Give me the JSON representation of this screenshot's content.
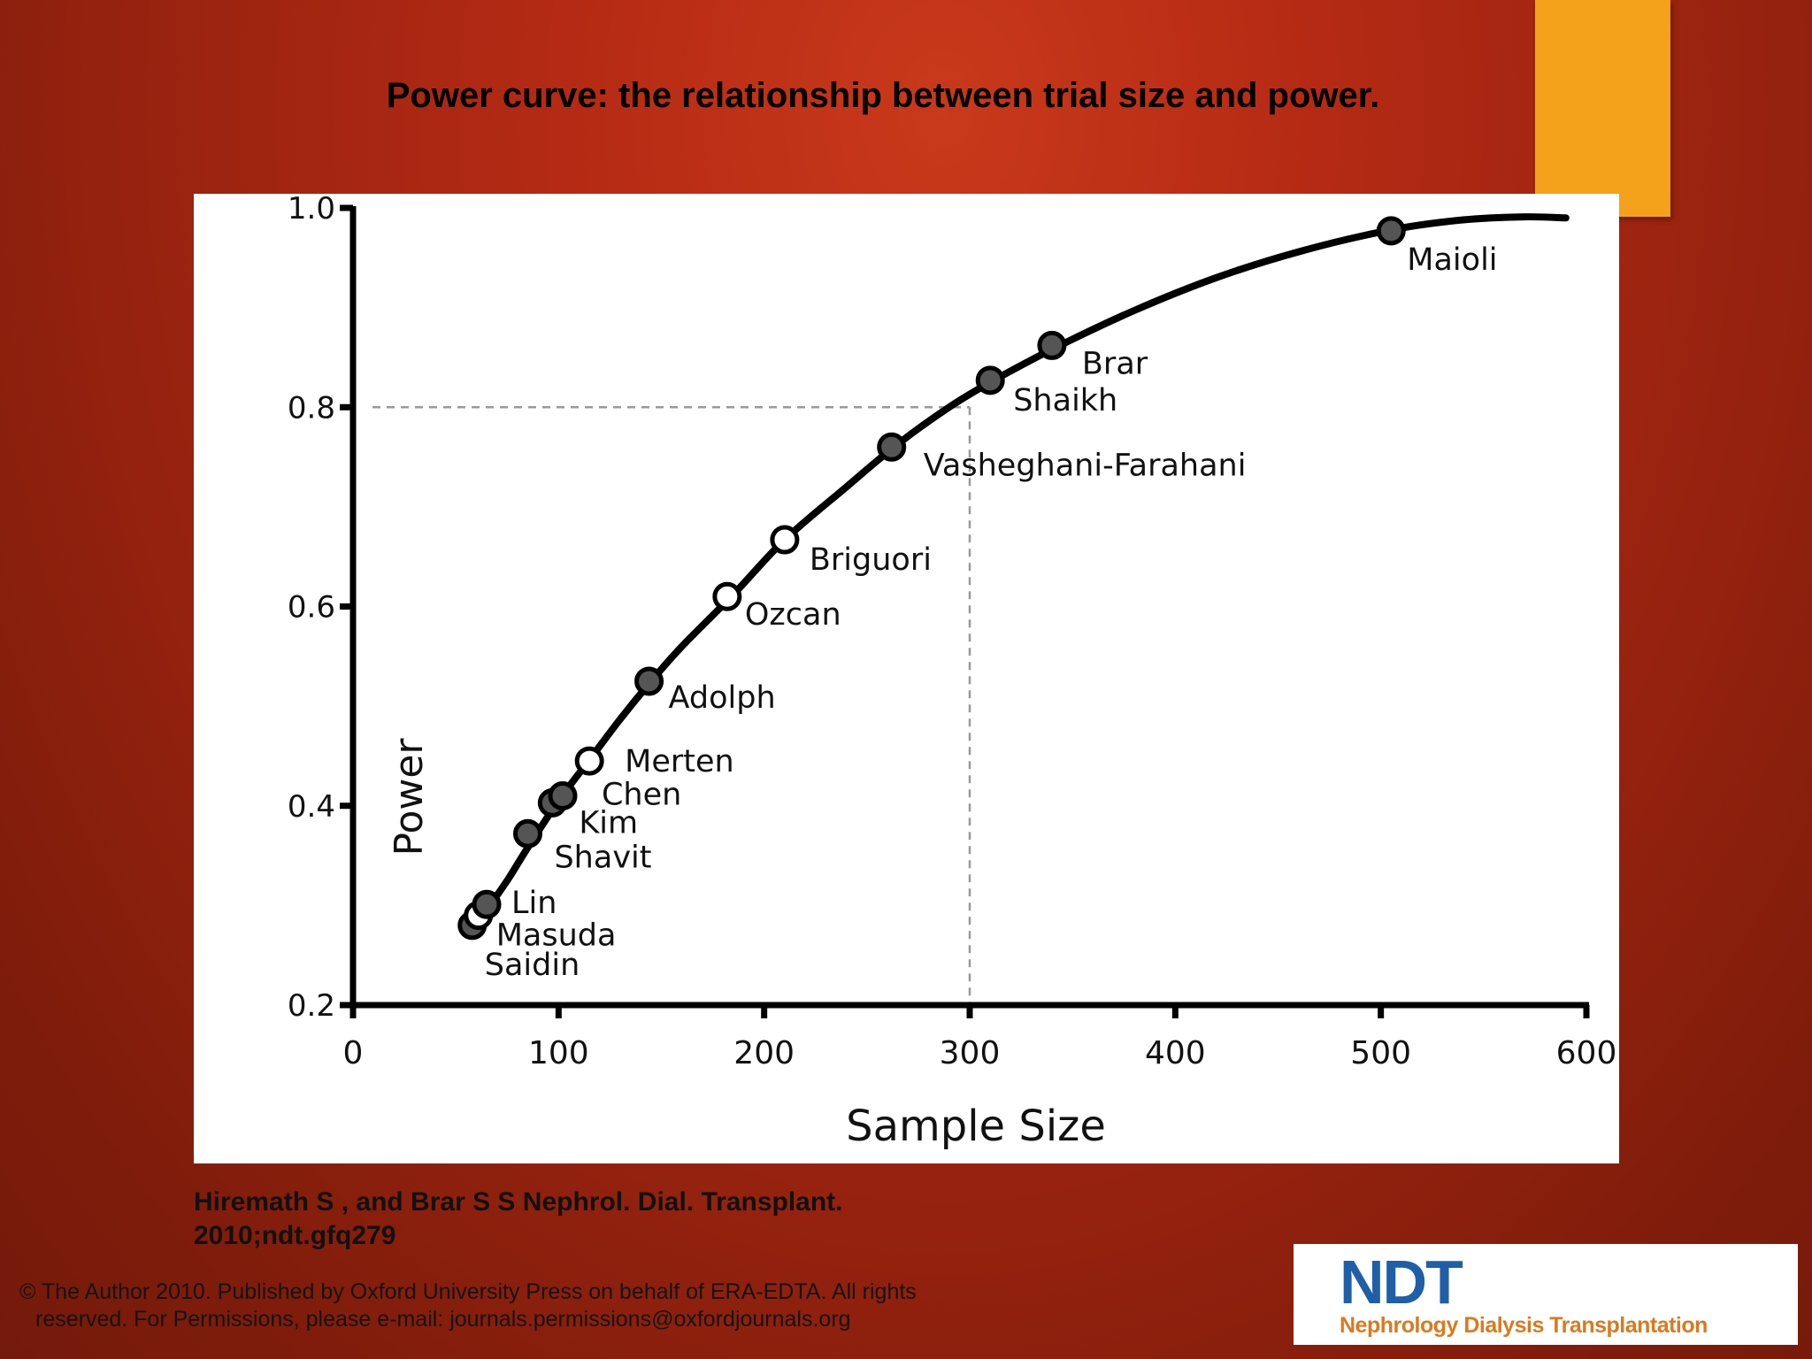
{
  "slide": {
    "title": "Power curve: the relationship between trial size and power.",
    "citation_line1": "Hiremath S , and Brar S S Nephrol. Dial. Transplant.",
    "citation_line2": "2010;ndt.gfq279",
    "copyright_line1": "© The Author 2010. Published by Oxford University Press on behalf of ERA-EDTA. All rights",
    "copyright_line2": "reserved. For Permissions, please e-mail: journals.permissions@oxfordjournals.org",
    "logo_text": "NDT",
    "logo_subtitle": "Nephrology Dialysis Transplantation",
    "colors": {
      "background": "#a8280f",
      "accent": "#f4a11b",
      "logo_blue": "#1f5fa8",
      "logo_orange": "#d97a20"
    }
  },
  "chart_data": {
    "type": "line",
    "title": "",
    "xlabel": "Sample Size",
    "ylabel": "Power",
    "xlim": [
      0,
      600
    ],
    "ylim": [
      0.2,
      1.0
    ],
    "x_ticks": [
      0,
      100,
      200,
      300,
      400,
      500,
      600
    ],
    "y_ticks": [
      0.2,
      0.4,
      0.6,
      0.8,
      1.0
    ],
    "x_tick_labels": [
      "0",
      "100",
      "200",
      "300",
      "400",
      "500",
      "600"
    ],
    "y_tick_labels": [
      "0.2",
      "0.4",
      "0.6",
      "0.8",
      "1.0"
    ],
    "grid": false,
    "curve": {
      "x": [
        55,
        60,
        65,
        75,
        85,
        100,
        115,
        130,
        145,
        160,
        185,
        210,
        240,
        265,
        290,
        310,
        340,
        380,
        420,
        460,
        505,
        540,
        570,
        590
      ],
      "y": [
        0.275,
        0.285,
        0.296,
        0.325,
        0.358,
        0.405,
        0.446,
        0.487,
        0.525,
        0.56,
        0.612,
        0.667,
        0.72,
        0.763,
        0.8,
        0.825,
        0.858,
        0.897,
        0.93,
        0.956,
        0.978,
        0.988,
        0.991,
        0.99
      ]
    },
    "reference_lines": {
      "x": 300,
      "y": 0.8,
      "style": "dashed"
    },
    "studies": [
      {
        "name": "Saidin",
        "x": 58,
        "y": 0.28,
        "fill": "filled"
      },
      {
        "name": "Masuda",
        "x": 61,
        "y": 0.29,
        "fill": "open"
      },
      {
        "name": "Lin",
        "x": 65,
        "y": 0.301,
        "fill": "filled"
      },
      {
        "name": "Shavit",
        "x": 85,
        "y": 0.372,
        "fill": "filled"
      },
      {
        "name": "Kim",
        "x": 97,
        "y": 0.403,
        "fill": "filled"
      },
      {
        "name": "Chen",
        "x": 102,
        "y": 0.41,
        "fill": "filled"
      },
      {
        "name": "Merten",
        "x": 115,
        "y": 0.445,
        "fill": "open"
      },
      {
        "name": "Adolph",
        "x": 144,
        "y": 0.525,
        "fill": "filled"
      },
      {
        "name": "Ozcan",
        "x": 182,
        "y": 0.61,
        "fill": "open"
      },
      {
        "name": "Briguori",
        "x": 210,
        "y": 0.667,
        "fill": "open"
      },
      {
        "name": "Vasheghani-Farahani",
        "x": 262,
        "y": 0.76,
        "fill": "filled"
      },
      {
        "name": "Shaikh",
        "x": 310,
        "y": 0.827,
        "fill": "filled"
      },
      {
        "name": "Brar",
        "x": 340,
        "y": 0.862,
        "fill": "filled"
      },
      {
        "name": "Maioli",
        "x": 505,
        "y": 0.977,
        "fill": "filled"
      }
    ]
  }
}
